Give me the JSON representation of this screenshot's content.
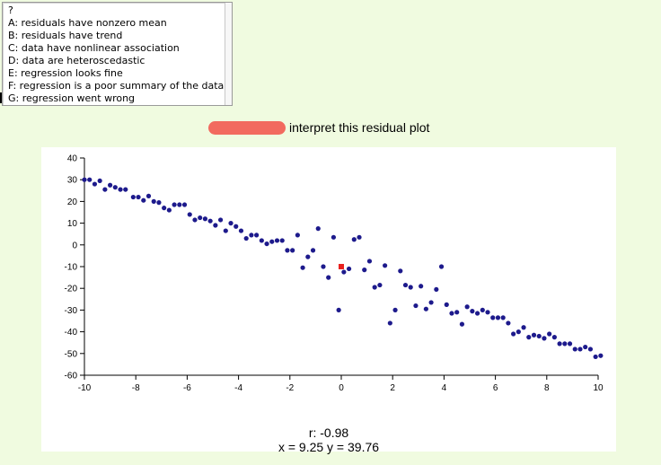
{
  "header": {
    "cropped_text": "..."
  },
  "listbox": {
    "question_mark": "?",
    "options": [
      "A: residuals have nonzero mean",
      "B: residuals have trend",
      "C: data have nonlinear association",
      "D: data are heteroscedastic",
      "E: regression looks fine",
      "F: regression is a poor summary of the data",
      "G: regression went wrong"
    ]
  },
  "instruction": {
    "text": "interpret this residual plot"
  },
  "colors": {
    "points": "#1d1a8c",
    "highlight": "#e8211f",
    "name_pill": "#f26a5f",
    "background": "#f0fbe0"
  },
  "chart_data": {
    "type": "scatter",
    "title": "",
    "xlabel": "",
    "ylabel": "",
    "xlim": [
      -10,
      10
    ],
    "ylim": [
      -60,
      40
    ],
    "xticks": [
      -10,
      -8,
      -6,
      -4,
      -2,
      0,
      2,
      4,
      6,
      8,
      10
    ],
    "yticks": [
      40,
      30,
      20,
      10,
      0,
      -10,
      -20,
      -30,
      -40,
      -50,
      -60
    ],
    "points": [
      [
        -10,
        30
      ],
      [
        -9.8,
        30
      ],
      [
        -9.6,
        28
      ],
      [
        -9.4,
        29.5
      ],
      [
        -9.2,
        25.5
      ],
      [
        -9,
        27.5
      ],
      [
        -8.8,
        26.5
      ],
      [
        -8.6,
        25.5
      ],
      [
        -8.4,
        25.5
      ],
      [
        -8.1,
        22
      ],
      [
        -7.9,
        22
      ],
      [
        -7.7,
        20.5
      ],
      [
        -7.5,
        22.5
      ],
      [
        -7.3,
        20
      ],
      [
        -7.1,
        19.5
      ],
      [
        -6.9,
        17
      ],
      [
        -6.7,
        16
      ],
      [
        -6.5,
        18.5
      ],
      [
        -6.3,
        18.5
      ],
      [
        -6.1,
        18.5
      ],
      [
        -5.9,
        14
      ],
      [
        -5.7,
        11.5
      ],
      [
        -5.5,
        12.5
      ],
      [
        -5.3,
        12
      ],
      [
        -5.1,
        11
      ],
      [
        -4.9,
        9
      ],
      [
        -4.7,
        11.5
      ],
      [
        -4.5,
        6.5
      ],
      [
        -4.3,
        10
      ],
      [
        -4.1,
        8.5
      ],
      [
        -3.9,
        6.5
      ],
      [
        -3.7,
        3
      ],
      [
        -3.5,
        4.5
      ],
      [
        -3.3,
        4.5
      ],
      [
        -3.1,
        2
      ],
      [
        -2.9,
        0.5
      ],
      [
        -2.7,
        1.5
      ],
      [
        -2.5,
        2
      ],
      [
        -2.3,
        2
      ],
      [
        -2.1,
        -2.5
      ],
      [
        -1.9,
        -2.5
      ],
      [
        -1.7,
        4.5
      ],
      [
        -1.5,
        -10.5
      ],
      [
        -1.3,
        -5.5
      ],
      [
        -1.1,
        -2.5
      ],
      [
        -0.9,
        7.5
      ],
      [
        -0.7,
        -10
      ],
      [
        -0.5,
        -15
      ],
      [
        -0.3,
        3.5
      ],
      [
        -0.1,
        -30
      ],
      [
        0.1,
        -12.5
      ],
      [
        0.3,
        -11
      ],
      [
        0.5,
        2.5
      ],
      [
        0.7,
        3.5
      ],
      [
        0.9,
        -11.5
      ],
      [
        1.1,
        -7.5
      ],
      [
        1.3,
        -19.5
      ],
      [
        1.5,
        -18.5
      ],
      [
        1.7,
        -9.5
      ],
      [
        1.9,
        -36
      ],
      [
        2.1,
        -30
      ],
      [
        2.3,
        -12
      ],
      [
        2.5,
        -18.5
      ],
      [
        2.7,
        -19.5
      ],
      [
        2.9,
        -28
      ],
      [
        3.1,
        -19
      ],
      [
        3.3,
        -29.5
      ],
      [
        3.5,
        -26.5
      ],
      [
        3.7,
        -20.5
      ],
      [
        3.9,
        -10
      ],
      [
        4.1,
        -27.5
      ],
      [
        4.3,
        -31.5
      ],
      [
        4.5,
        -31
      ],
      [
        4.7,
        -36.5
      ],
      [
        4.9,
        -28.5
      ],
      [
        5.1,
        -30.5
      ],
      [
        5.3,
        -31.5
      ],
      [
        5.5,
        -30
      ],
      [
        5.7,
        -31
      ],
      [
        5.9,
        -33.5
      ],
      [
        6.1,
        -33.5
      ],
      [
        6.3,
        -33.5
      ],
      [
        6.5,
        -36
      ],
      [
        6.7,
        -41
      ],
      [
        6.9,
        -40
      ],
      [
        7.1,
        -38
      ],
      [
        7.3,
        -42.5
      ],
      [
        7.5,
        -41.5
      ],
      [
        7.7,
        -42
      ],
      [
        7.9,
        -43
      ],
      [
        8.1,
        -41
      ],
      [
        8.3,
        -42.5
      ],
      [
        8.5,
        -45.5
      ],
      [
        8.7,
        -45.5
      ],
      [
        8.9,
        -45.5
      ],
      [
        9.1,
        -48
      ],
      [
        9.3,
        -48
      ],
      [
        9.5,
        -47
      ],
      [
        9.7,
        -48
      ],
      [
        9.9,
        -51.5
      ],
      [
        10.1,
        -51
      ]
    ],
    "highlight_point": [
      0,
      -10
    ]
  },
  "stats": {
    "r_line": "r: -0.98",
    "xy_line": "x = 9.25 y = 39.76"
  }
}
